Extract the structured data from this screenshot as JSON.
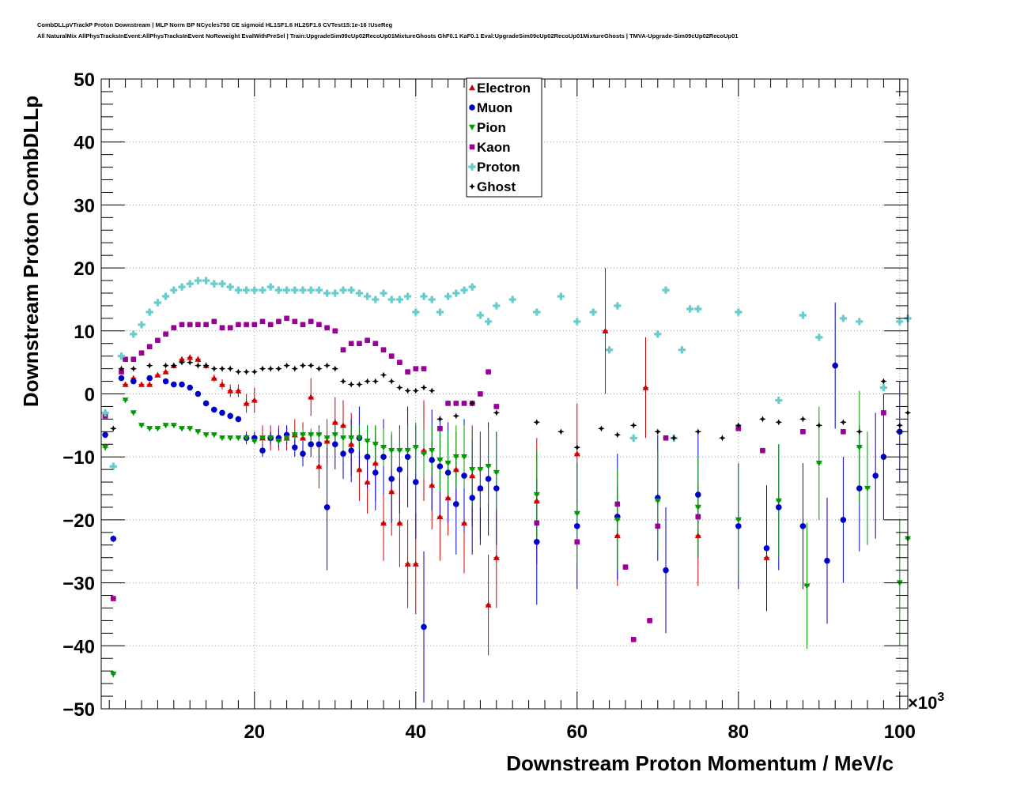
{
  "header": {
    "line1": "CombDLLpVTrackP Proton Downstream | MLP Norm BP NCycles750 CE sigmoid HL1SF1.6 HL2SF1.6 CVTest15:1e-16 !UseReg",
    "line2": "All NaturalMix AllPhysTracksInEvent:AllPhysTracksInEvent NoReweight EvalWithPreSel | Train:UpgradeSim09cUp02RecoUp01MixtureGhosts GhF0.1 KaF0.1 Eval:UpgradeSim09cUp02RecoUp01MixtureGhosts | TMVA-Upgrade-Sim09cUp02RecoUp01"
  },
  "chart_data": {
    "type": "scatter",
    "xlabel": "Downstream Proton Momentum / MeV/c",
    "ylabel": "Downstream Proton CombDLLp",
    "x_multiplier": "×10",
    "x_multiplier_exp": "3",
    "xlim": [
      1,
      101
    ],
    "ylim": [
      -50,
      50
    ],
    "x_ticks": [
      20,
      40,
      60,
      80,
      100
    ],
    "y_ticks": [
      -50,
      -40,
      -30,
      -20,
      -10,
      0,
      10,
      20,
      30,
      40,
      50
    ],
    "grid": true,
    "legend_position": "top-center",
    "series": [
      {
        "name": "Electron",
        "color": "#cc0000",
        "marker": "triangle-up",
        "x": [
          4,
          5,
          6,
          7,
          8,
          9,
          10,
          11,
          12,
          13,
          14,
          15,
          16,
          17,
          18,
          19,
          20,
          21,
          22,
          23,
          24,
          25,
          26,
          27,
          28,
          29,
          30,
          31,
          32,
          33,
          34,
          35,
          36,
          37,
          38,
          39,
          40,
          41,
          42,
          43,
          44,
          45,
          46,
          47,
          48,
          49,
          50,
          55,
          60,
          63.5,
          65,
          68.5,
          75,
          83.5
        ],
        "y": [
          1.5,
          2.5,
          1.5,
          1.5,
          3,
          3.5,
          4.5,
          5.5,
          5.8,
          5.5,
          4.5,
          2.5,
          1.5,
          0.5,
          0.5,
          -1.5,
          -1,
          -7,
          -7,
          -7,
          -7,
          -6.5,
          -7,
          -0.5,
          -11.5,
          -7.5,
          -4.5,
          -5,
          -8,
          -12,
          -14,
          -11,
          -20.5,
          -15.5,
          -20.5,
          -27,
          -27,
          -9,
          -14.5,
          -19.5,
          -16.5,
          -12,
          -20.5,
          -13,
          -15,
          -33.5,
          -26,
          -17,
          -9.5,
          10,
          -22.5,
          1,
          -22.5,
          -26
        ],
        "err": [
          0.3,
          0.3,
          0.3,
          0.3,
          0.3,
          0.3,
          0.4,
          0.4,
          0.4,
          0.5,
          0.5,
          0.6,
          0.8,
          1,
          1,
          1.5,
          2,
          2,
          2,
          2,
          2,
          2.5,
          2.5,
          3,
          3.5,
          3.5,
          4,
          4,
          5,
          5,
          5,
          6,
          6,
          7,
          7,
          7,
          8,
          8,
          7,
          7,
          6,
          6,
          8,
          8,
          8,
          8,
          8,
          10,
          8,
          10,
          8,
          8,
          8,
          8
        ]
      },
      {
        "name": "Muon",
        "color": "#0000cc",
        "marker": "circle",
        "x": [
          1.5,
          2.5,
          3.5,
          5,
          7,
          9,
          10,
          11,
          12,
          13,
          14,
          15,
          16,
          17,
          18,
          19,
          20,
          21,
          22,
          23,
          24,
          25,
          26,
          27,
          28,
          29,
          30,
          31,
          32,
          33,
          34,
          35,
          36,
          37,
          38,
          39,
          40,
          41,
          42,
          43,
          44,
          45,
          46,
          47,
          48,
          49,
          50,
          55,
          60,
          65,
          70,
          71,
          75,
          80,
          83.5,
          85,
          88,
          91,
          92,
          93,
          95,
          97,
          98,
          100
        ],
        "y": [
          -6.5,
          -23,
          2.5,
          2,
          2.5,
          2,
          1.5,
          1.5,
          1,
          0,
          -1.5,
          -2.5,
          -3,
          -3.5,
          -4,
          -7,
          -7,
          -9,
          -7,
          -7,
          -6.5,
          -8.5,
          -9.5,
          -8,
          -8,
          -18,
          -8,
          -9.5,
          -9,
          -7,
          -10,
          -12.5,
          -10,
          -13.5,
          -12,
          -10,
          -14,
          -37,
          -10.5,
          -11.5,
          -12.5,
          -17.5,
          -13,
          -16.5,
          -15,
          -13.5,
          -15,
          -23.5,
          -21,
          -19.5,
          -16.5,
          -28,
          -16,
          -21,
          -24.5,
          -18,
          -21,
          -26.5,
          4.5,
          -20,
          -15,
          -13,
          -10,
          -6
        ],
        "err": [
          0.5,
          0.5,
          0.3,
          0.2,
          0.2,
          0.2,
          0.2,
          0.2,
          0.2,
          0.3,
          0.3,
          0.3,
          0.4,
          0.5,
          0.5,
          1,
          1,
          1,
          1,
          1.5,
          1.5,
          1.5,
          2,
          2,
          3,
          10,
          4,
          4,
          5,
          5,
          5,
          6,
          6,
          7,
          7,
          8,
          9,
          12,
          8,
          8,
          8,
          8,
          9,
          9,
          9,
          9,
          9,
          10,
          10,
          10,
          10,
          10,
          10,
          10,
          10,
          10,
          10,
          10,
          10,
          10,
          10,
          10,
          10,
          8
        ]
      },
      {
        "name": "Pion",
        "color": "#009900",
        "marker": "triangle-down",
        "x": [
          1.5,
          2.5,
          4,
          5,
          6,
          7,
          8,
          9,
          10,
          11,
          12,
          13,
          14,
          15,
          16,
          17,
          18,
          19,
          20,
          21,
          22,
          23,
          24,
          25,
          26,
          27,
          28,
          29,
          30,
          31,
          32,
          33,
          34,
          35,
          36,
          37,
          38,
          39,
          40,
          41,
          42,
          43,
          44,
          45,
          46,
          47,
          48,
          49,
          50,
          55,
          60,
          65,
          70,
          75,
          80,
          85,
          88.5,
          90,
          95,
          96,
          100,
          101
        ],
        "y": [
          -8.5,
          -44.5,
          -1,
          -3,
          -5,
          -5.5,
          -5.5,
          -5,
          -5,
          -5.5,
          -5.5,
          -6,
          -6.5,
          -6.5,
          -7,
          -7,
          -7,
          -7,
          -7.5,
          -7,
          -7,
          -7.5,
          -7,
          -6.5,
          -6.5,
          -6.5,
          -6.5,
          -7,
          -6.5,
          -7,
          -7,
          -7,
          -7.5,
          -8,
          -8.5,
          -9,
          -9,
          -9,
          -8.5,
          -9.5,
          -9,
          -10.5,
          -11,
          -10,
          -10,
          -12,
          -12,
          -11.5,
          -12.5,
          -16,
          -19,
          -20,
          -17,
          -18,
          -20,
          -17,
          -30.5,
          -11,
          -8.5,
          -15,
          -30,
          -23
        ],
        "err": [
          0.5,
          0.5,
          0.3,
          0.2,
          0.2,
          0.2,
          0.2,
          0.2,
          0.2,
          0.2,
          0.2,
          0.2,
          0.3,
          0.3,
          0.3,
          0.3,
          0.3,
          0.4,
          0.4,
          0.5,
          0.5,
          0.6,
          0.7,
          0.8,
          1,
          1,
          1.2,
          1.5,
          1.5,
          2,
          2,
          2,
          2.5,
          3,
          3,
          3,
          3.5,
          4,
          4,
          4,
          4,
          5,
          5,
          5,
          5,
          6,
          6,
          6,
          6,
          7,
          8,
          8,
          8,
          8,
          9,
          9,
          10,
          9,
          9,
          9,
          10,
          12
        ]
      },
      {
        "name": "Kaon",
        "color": "#990099",
        "marker": "square",
        "x": [
          1.5,
          2.5,
          3.5,
          4,
          5,
          6,
          7,
          8,
          9,
          10,
          11,
          12,
          13,
          14,
          15,
          16,
          17,
          18,
          19,
          20,
          21,
          22,
          23,
          24,
          25,
          26,
          27,
          28,
          29,
          30,
          31,
          32,
          33,
          34,
          35,
          36,
          37,
          38,
          39,
          40,
          41,
          43,
          44,
          45,
          46,
          47,
          48,
          49,
          50,
          55,
          60,
          65,
          66,
          67,
          69,
          70,
          71,
          75,
          80,
          83,
          88,
          93,
          98
        ],
        "y": [
          -3.5,
          -32.5,
          3.5,
          5.5,
          5.5,
          6.5,
          7.5,
          8.5,
          9.5,
          10.5,
          11,
          11,
          11,
          11,
          11.5,
          10.5,
          10.5,
          11,
          11,
          11,
          11.5,
          11,
          11.5,
          12,
          11.5,
          11,
          11.5,
          11,
          10.5,
          10,
          7,
          8,
          8,
          8.5,
          8,
          7,
          6,
          5,
          3.5,
          4,
          4,
          -5.5,
          -1.5,
          -1.5,
          -1.5,
          -1.5,
          0,
          3.5,
          -2,
          -20.5,
          -23.5,
          -17.5,
          -27.5,
          -39,
          -36,
          -21,
          -7,
          -19.5,
          -5.5,
          -9,
          -6,
          -6,
          -3
        ]
      },
      {
        "name": "Proton",
        "color": "#66cccc",
        "marker": "cross",
        "x": [
          1.5,
          2.5,
          3.5,
          5,
          6,
          7,
          8,
          9,
          10,
          11,
          12,
          13,
          14,
          15,
          16,
          17,
          18,
          19,
          20,
          21,
          22,
          23,
          24,
          25,
          26,
          27,
          28,
          29,
          30,
          31,
          32,
          33,
          34,
          35,
          36,
          37,
          38,
          39,
          40,
          41,
          42,
          43,
          44,
          45,
          46,
          47,
          48,
          49,
          50,
          52,
          55,
          58,
          60,
          62,
          64,
          65,
          67,
          70,
          71,
          72,
          73,
          74,
          75,
          80,
          85,
          88,
          90,
          93,
          95,
          98,
          100,
          101
        ],
        "y": [
          -3,
          -11.5,
          6,
          9.5,
          11,
          13,
          14.5,
          15.5,
          16.5,
          17,
          17.5,
          18,
          18,
          17.5,
          17.5,
          17,
          16.5,
          16.5,
          16.5,
          16.5,
          17,
          16.5,
          16.5,
          16.5,
          16.5,
          16.5,
          16.5,
          16,
          16,
          16.5,
          16.5,
          16,
          15.5,
          15,
          16,
          15,
          15,
          15.5,
          13,
          15.5,
          15,
          13,
          15.5,
          16,
          16.5,
          17,
          12.5,
          11.5,
          14,
          15,
          13,
          15.5,
          11.5,
          13,
          7,
          14,
          -7,
          9.5,
          16.5,
          -7,
          7,
          13.5,
          13.5,
          13,
          -1,
          12.5,
          9,
          12,
          11.5,
          1,
          11.5,
          12
        ]
      },
      {
        "name": "Ghost",
        "color": "#000000",
        "marker": "star",
        "x": [
          2.5,
          3.5,
          5,
          7,
          9,
          10,
          11,
          12,
          13,
          14,
          15,
          16,
          17,
          18,
          19,
          20,
          21,
          22,
          23,
          24,
          25,
          26,
          27,
          28,
          29,
          30,
          31,
          32,
          33,
          34,
          35,
          36,
          37,
          38,
          39,
          40,
          41,
          42,
          43,
          45,
          47,
          50,
          55,
          58,
          60,
          63,
          65,
          67,
          70,
          72,
          75,
          78,
          80,
          83,
          85,
          88,
          90,
          93,
          95,
          98,
          100,
          101
        ],
        "y": [
          -5.5,
          4,
          4,
          4.5,
          4.5,
          4.5,
          5,
          5,
          4.5,
          4.5,
          4,
          4,
          4,
          3.5,
          3.5,
          3.5,
          4,
          4,
          4,
          4.5,
          4,
          4.5,
          4.5,
          4,
          4.5,
          4,
          2,
          1.5,
          1.5,
          2,
          2,
          3,
          2,
          1,
          0.5,
          0.5,
          1,
          0.5,
          -4,
          -3.5,
          -1.5,
          -3,
          -4.5,
          -6,
          -8.5,
          -5.5,
          -6.5,
          -5,
          -6,
          -7,
          -6,
          -7,
          -5,
          -4,
          -4.5,
          -4,
          -5,
          -4.5,
          -6,
          2,
          -5,
          -3
        ]
      }
    ]
  }
}
